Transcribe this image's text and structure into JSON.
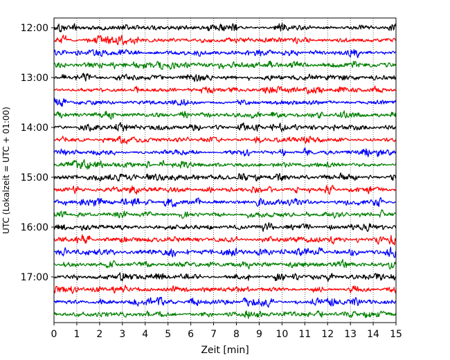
{
  "chart_data": {
    "type": "line",
    "title": "",
    "xlabel": "Zeit  [min]",
    "ylabel": "UTC (Lokalzeit = UTC + 01:00)",
    "xlim": [
      0,
      15
    ],
    "x_ticks": [
      "0",
      "1",
      "2",
      "3",
      "4",
      "5",
      "6",
      "7",
      "8",
      "9",
      "10",
      "11",
      "12",
      "13",
      "14",
      "15"
    ],
    "y_ticks": [
      "12:00",
      "13:00",
      "14:00",
      "15:00",
      "16:00",
      "17:00"
    ],
    "grid": "vertical dotted lines at each minute",
    "trace_interval_min": 15,
    "trace_colors": [
      "#000000",
      "#ff0000",
      "#0000ff",
      "#008000"
    ],
    "traces": [
      {
        "start": "12:00",
        "color": "#000000"
      },
      {
        "start": "12:15",
        "color": "#ff0000"
      },
      {
        "start": "12:30",
        "color": "#0000ff"
      },
      {
        "start": "12:45",
        "color": "#008000"
      },
      {
        "start": "13:00",
        "color": "#000000"
      },
      {
        "start": "13:15",
        "color": "#ff0000"
      },
      {
        "start": "13:30",
        "color": "#0000ff"
      },
      {
        "start": "13:45",
        "color": "#008000"
      },
      {
        "start": "14:00",
        "color": "#000000"
      },
      {
        "start": "14:15",
        "color": "#ff0000"
      },
      {
        "start": "14:30",
        "color": "#0000ff"
      },
      {
        "start": "14:45",
        "color": "#008000"
      },
      {
        "start": "15:00",
        "color": "#000000"
      },
      {
        "start": "15:15",
        "color": "#ff0000"
      },
      {
        "start": "15:30",
        "color": "#0000ff"
      },
      {
        "start": "15:45",
        "color": "#008000"
      },
      {
        "start": "16:00",
        "color": "#000000"
      },
      {
        "start": "16:15",
        "color": "#ff0000"
      },
      {
        "start": "16:30",
        "color": "#0000ff"
      },
      {
        "start": "16:45",
        "color": "#008000"
      },
      {
        "start": "17:00",
        "color": "#000000"
      },
      {
        "start": "17:15",
        "color": "#ff0000"
      },
      {
        "start": "17:30",
        "color": "#0000ff"
      },
      {
        "start": "17:45",
        "color": "#008000"
      }
    ]
  }
}
